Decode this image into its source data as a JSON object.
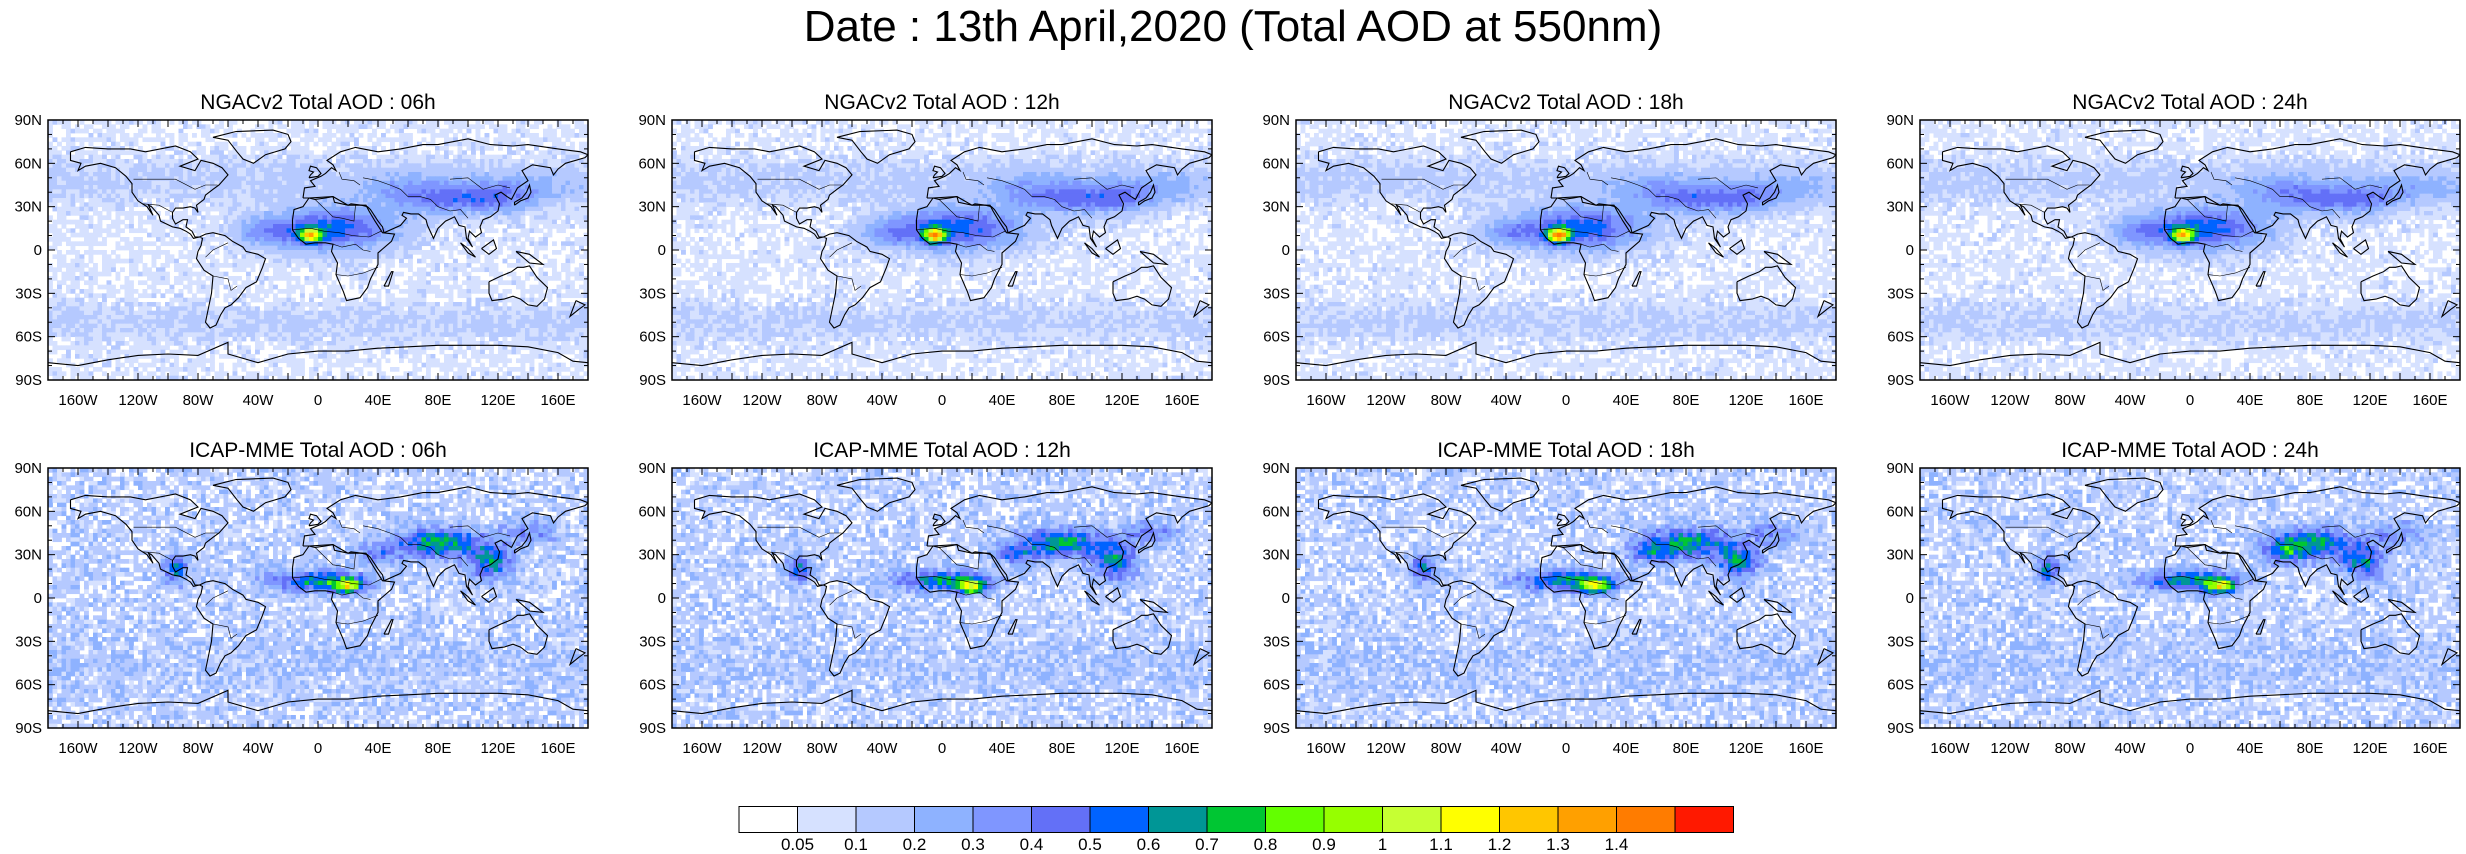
{
  "title": "Date : 13th April,2020 (Total AOD at 550nm)",
  "panels": [
    {
      "title": "NGACv2 Total AOD : 06h",
      "model": "ngac",
      "hour": 6
    },
    {
      "title": "NGACv2 Total AOD : 12h",
      "model": "ngac",
      "hour": 12
    },
    {
      "title": "NGACv2 Total AOD : 18h",
      "model": "ngac",
      "hour": 18
    },
    {
      "title": "NGACv2 Total AOD : 24h",
      "model": "ngac",
      "hour": 24
    },
    {
      "title": "ICAP-MME Total AOD : 06h",
      "model": "icap",
      "hour": 6
    },
    {
      "title": "ICAP-MME Total AOD : 12h",
      "model": "icap",
      "hour": 12
    },
    {
      "title": "ICAP-MME Total AOD : 18h",
      "model": "icap",
      "hour": 18
    },
    {
      "title": "ICAP-MME Total AOD : 24h",
      "model": "icap",
      "hour": 24
    }
  ],
  "axes": {
    "lat_ticks": [
      "90N",
      "60N",
      "30N",
      "0",
      "30S",
      "60S",
      "90S"
    ],
    "lon_ticks": [
      "160W",
      "120W",
      "80W",
      "40W",
      "0",
      "40E",
      "80E",
      "120E",
      "160E"
    ]
  },
  "colorbar": {
    "labels": [
      "0.05",
      "0.1",
      "0.2",
      "0.3",
      "0.4",
      "0.5",
      "0.6",
      "0.7",
      "0.8",
      "0.9",
      "1",
      "1.1",
      "1.2",
      "1.3",
      "1.4"
    ],
    "colors": [
      "#ffffff",
      "#d6e1ff",
      "#b5c9ff",
      "#8eb2ff",
      "#7f96ff",
      "#6370f7",
      "#0063ff",
      "#009696",
      "#00c633",
      "#63ff00",
      "#96ff00",
      "#c6ff33",
      "#ffff00",
      "#ffc600",
      "#ffa000",
      "#ff7c00",
      "#ff1900"
    ]
  }
}
